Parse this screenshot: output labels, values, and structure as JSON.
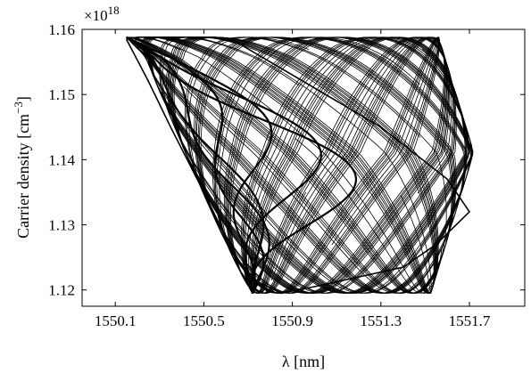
{
  "chart_data": {
    "type": "line",
    "title": "",
    "xlabel": "λ [nm]",
    "ylabel_main": "Carrier density [cm",
    "ylabel_sup": "−3",
    "ylabel_end": "]",
    "y_exponent_base": "×10",
    "y_exponent_power": "18",
    "xlim": [
      1549.95,
      1551.95
    ],
    "ylim": [
      1.1175,
      1.16
    ],
    "xticks": [
      1550.1,
      1550.5,
      1550.9,
      1551.3,
      1551.7
    ],
    "xtick_labels": [
      "1550.1",
      "1550.5",
      "1550.9",
      "1551.3",
      "1551.7"
    ],
    "yticks": [
      1.12,
      1.13,
      1.14,
      1.15,
      1.16
    ],
    "ytick_labels": [
      "1.12",
      "1.13",
      "1.14",
      "1.15",
      "1.16"
    ],
    "grid": false,
    "legend": "none",
    "line_color": "#000000",
    "series": [
      {
        "x": [
          1550.15,
          1550.25,
          1550.35,
          1550.5,
          1550.6,
          1550.7,
          1550.85,
          1551.0,
          1551.2,
          1551.4,
          1551.55,
          1551.7,
          1551.6,
          1551.45,
          1551.3,
          1551.1,
          1550.9,
          1550.75,
          1550.65,
          1550.55,
          1550.4,
          1550.3,
          1550.2,
          1550.15
        ],
        "y": [
          1.1585,
          1.152,
          1.145,
          1.135,
          1.128,
          1.122,
          1.1195,
          1.1205,
          1.122,
          1.1235,
          1.127,
          1.132,
          1.137,
          1.141,
          1.145,
          1.149,
          1.153,
          1.156,
          1.158,
          1.1588,
          1.1588,
          1.1588,
          1.1588,
          1.1585
        ]
      }
    ]
  }
}
